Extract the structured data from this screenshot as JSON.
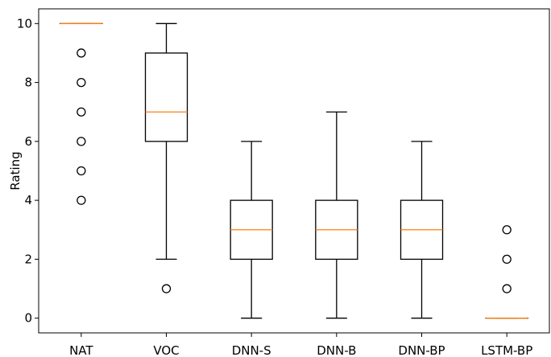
{
  "chart_data": {
    "type": "box",
    "title": "",
    "xlabel": "",
    "ylabel": "Rating",
    "ylim": [
      -0.5,
      10.5
    ],
    "y_ticks": [
      0,
      2,
      4,
      6,
      8,
      10
    ],
    "grid": false,
    "legend": "none",
    "categories": [
      "NAT",
      "VOC",
      "DNN-S",
      "DNN-B",
      "DNN-BP",
      "LSTM-BP"
    ],
    "boxes": [
      {
        "category": "NAT",
        "whisker_low": 10,
        "q1": 10,
        "median": 10,
        "q3": 10,
        "whisker_high": 10,
        "outliers": [
          9,
          8,
          7,
          6,
          5,
          4
        ]
      },
      {
        "category": "VOC",
        "whisker_low": 2,
        "q1": 6,
        "median": 7,
        "q3": 9,
        "whisker_high": 10,
        "outliers": [
          1
        ]
      },
      {
        "category": "DNN-S",
        "whisker_low": 0,
        "q1": 2,
        "median": 3,
        "q3": 4,
        "whisker_high": 6,
        "outliers": []
      },
      {
        "category": "DNN-B",
        "whisker_low": 0,
        "q1": 2,
        "median": 3,
        "q3": 4,
        "whisker_high": 7,
        "outliers": []
      },
      {
        "category": "DNN-BP",
        "whisker_low": 0,
        "q1": 2,
        "median": 3,
        "q3": 4,
        "whisker_high": 6,
        "outliers": []
      },
      {
        "category": "LSTM-BP",
        "whisker_low": 0,
        "q1": 0,
        "median": 0,
        "q3": 0,
        "whisker_high": 0,
        "outliers": [
          3,
          2,
          1
        ]
      }
    ],
    "colors": {
      "box": "#000000",
      "median": "#ff7f0e",
      "outlier": "#000000"
    }
  }
}
